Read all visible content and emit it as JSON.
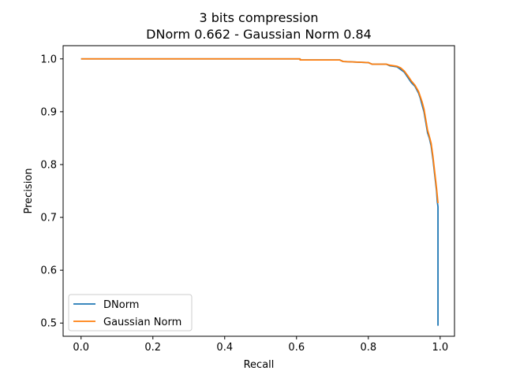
{
  "chart_data": {
    "type": "line",
    "title": "3 bits compression",
    "subtitle": "DNorm 0.662 - Gaussian Norm 0.84",
    "xlabel": "Recall",
    "ylabel": "Precision",
    "xlim": [
      -0.05,
      1.04
    ],
    "ylim": [
      0.475,
      1.025
    ],
    "xticks": [
      0.0,
      0.2,
      0.4,
      0.6,
      0.8,
      1.0
    ],
    "xtick_labels": [
      "0.0",
      "0.2",
      "0.4",
      "0.6",
      "0.8",
      "1.0"
    ],
    "yticks": [
      0.5,
      0.6,
      0.7,
      0.8,
      0.9,
      1.0
    ],
    "ytick_labels": [
      "0.5",
      "0.6",
      "0.7",
      "0.8",
      "0.9",
      "1.0"
    ],
    "grid": false,
    "legend_position": "lower-left",
    "series": [
      {
        "name": "DNorm",
        "color": "#1f77b4",
        "x": [
          0.0,
          0.61,
          0.61,
          0.72,
          0.73,
          0.8,
          0.81,
          0.85,
          0.86,
          0.88,
          0.89,
          0.9,
          0.91,
          0.92,
          0.93,
          0.94,
          0.945,
          0.95,
          0.955,
          0.96,
          0.965,
          0.97,
          0.975,
          0.98,
          0.985,
          0.99,
          0.992,
          0.994,
          0.994
        ],
        "y": [
          1.0,
          1.0,
          0.998,
          0.998,
          0.995,
          0.993,
          0.99,
          0.99,
          0.987,
          0.985,
          0.98,
          0.975,
          0.965,
          0.955,
          0.948,
          0.935,
          0.925,
          0.912,
          0.9,
          0.88,
          0.86,
          0.85,
          0.835,
          0.81,
          0.78,
          0.75,
          0.73,
          0.72,
          0.495
        ]
      },
      {
        "name": "Gaussian Norm",
        "color": "#ff7f0e",
        "x": [
          0.0,
          0.61,
          0.61,
          0.72,
          0.73,
          0.8,
          0.81,
          0.85,
          0.86,
          0.88,
          0.89,
          0.9,
          0.91,
          0.92,
          0.93,
          0.94,
          0.945,
          0.95,
          0.955,
          0.96,
          0.965,
          0.97,
          0.975,
          0.98,
          0.985,
          0.99,
          0.994
        ],
        "y": [
          1.0,
          1.0,
          0.998,
          0.998,
          0.995,
          0.993,
          0.99,
          0.99,
          0.988,
          0.986,
          0.983,
          0.977,
          0.968,
          0.958,
          0.95,
          0.938,
          0.928,
          0.918,
          0.905,
          0.885,
          0.865,
          0.853,
          0.84,
          0.815,
          0.785,
          0.755,
          0.727
        ]
      }
    ]
  }
}
